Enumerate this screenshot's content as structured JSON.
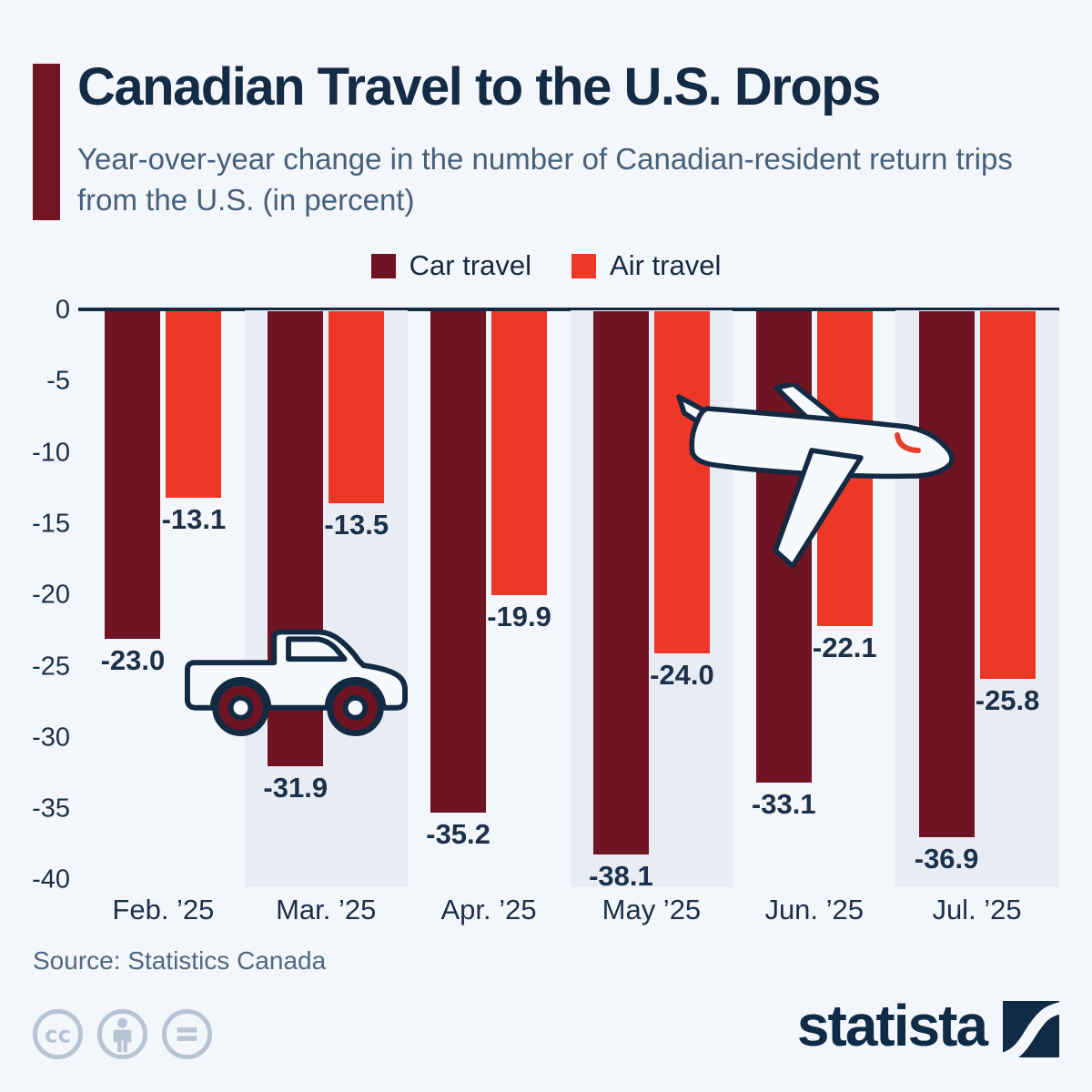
{
  "header": {
    "title": "Canadian Travel to the U.S. Drops",
    "subtitle": "Year-over-year change in the number of Canadian-resident return trips from the U.S. (in percent)"
  },
  "legend": [
    {
      "label": "Car travel",
      "color": "#6e1422"
    },
    {
      "label": "Air travel",
      "color": "#ee3726"
    }
  ],
  "chart_data": {
    "type": "bar",
    "categories": [
      "Feb. ’25",
      "Mar. ’25",
      "Apr. ’25",
      "May ’25",
      "Jun. ’25",
      "Jul. ’25"
    ],
    "series": [
      {
        "name": "Car travel",
        "color": "#6e1422",
        "values": [
          -23.0,
          -31.9,
          -35.2,
          -38.1,
          -33.1,
          -36.9
        ]
      },
      {
        "name": "Air travel",
        "color": "#ee3726",
        "values": [
          -13.1,
          -13.5,
          -19.9,
          -24.0,
          -22.1,
          -25.8
        ]
      }
    ],
    "title": "Canadian Travel to the U.S. Drops",
    "xlabel": "",
    "ylabel": "",
    "ylim": [
      -40,
      0
    ],
    "yticks": [
      0,
      -5,
      -10,
      -15,
      -20,
      -25,
      -30,
      -35,
      -40
    ],
    "grid": false,
    "legend_position": "top",
    "value_labels": true,
    "band_highlight_categories": [
      "Mar. ’25",
      "May ’25",
      "Jul. ’25"
    ]
  },
  "icons": {
    "car": "car-icon",
    "plane": "airplane-icon",
    "cc": [
      "cc-icon",
      "cc-by-person-icon",
      "cc-nd-equals-icon"
    ]
  },
  "source": {
    "text": "Source: Statistics Canada"
  },
  "branding": {
    "logo_text": "statista"
  },
  "colors": {
    "background": "#f3f6fa",
    "band": "#e8edf5",
    "accent_bar": "#711424",
    "title": "#142b45",
    "subtitle": "#46607a",
    "axis_text": "#1c3048",
    "zero_line": "#132a43",
    "car_series": "#6e1422",
    "air_series": "#ee3726",
    "cc_gray": "#b7c4d4",
    "logo_navy": "#0f2b46"
  }
}
